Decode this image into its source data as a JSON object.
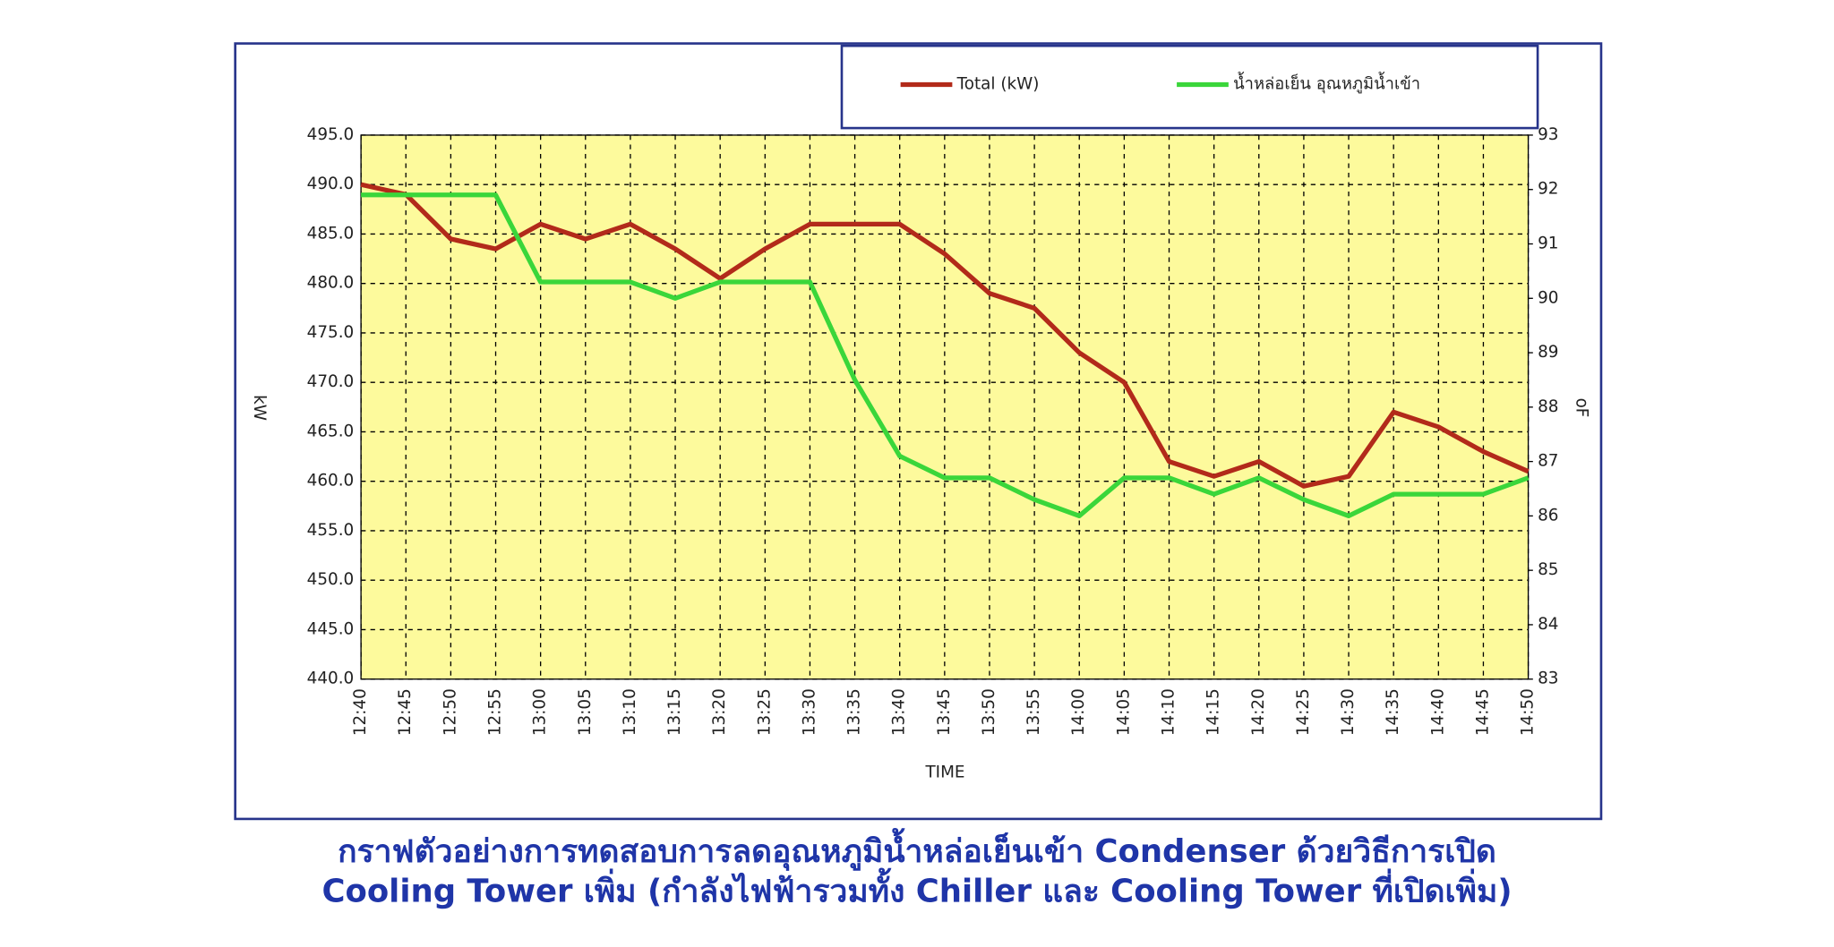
{
  "chart_data": {
    "type": "line",
    "caption": [
      "กราฟตัวอย่างการทดสอบการลดอุณหภูมิน้ำหล่อเย็นเข้า Condenser ด้วยวิธีการเปิด",
      "Cooling Tower เพิ่ม (กำลังไฟฟ้ารวมทั้ง Chiller และ Cooling Tower ที่เปิดเพิ่ม)"
    ],
    "x_label": "TIME",
    "y_label": "kW",
    "y2_label": "oF",
    "categories": [
      "12:40",
      "12:45",
      "12:50",
      "12:55",
      "13:00",
      "13:05",
      "13:10",
      "13:15",
      "13:20",
      "13:25",
      "13:30",
      "13:35",
      "13:40",
      "13:45",
      "13:50",
      "13:55",
      "14:00",
      "14:05",
      "14:10",
      "14:15",
      "14:20",
      "14:25",
      "14:30",
      "14:35",
      "14:40",
      "14:45",
      "14:50"
    ],
    "series": [
      {
        "name": "Total (kW)",
        "color": "#b22a1a",
        "values": [
          490,
          489,
          484.5,
          483.5,
          486,
          484.5,
          486,
          483.5,
          480.5,
          483.5,
          486,
          486,
          486,
          483,
          479,
          477.5,
          473,
          470,
          462,
          460.5,
          462,
          459.5,
          460.5,
          467,
          465.5,
          463,
          461
        ]
      },
      {
        "name": "น้ำหล่อเย็น อุณหภูมิน้ำเข้า",
        "color": "#3ad63a",
        "axis": "y2",
        "values": [
          91.9,
          91.9,
          91.9,
          91.9,
          90.3,
          90.3,
          90.3,
          90.0,
          90.3,
          90.3,
          90.3,
          88.5,
          87.1,
          86.7,
          86.7,
          86.3,
          86.0,
          86.7,
          86.7,
          86.4,
          86.7,
          86.3,
          86.0,
          86.4,
          86.4,
          86.4,
          86.7
        ]
      }
    ],
    "ylim": [
      440,
      495
    ],
    "yticks": [
      {
        "value": 440,
        "label": "440.0"
      },
      {
        "value": 445,
        "label": "445.0"
      },
      {
        "value": 450,
        "label": "450.0"
      },
      {
        "value": 455,
        "label": "455.0"
      },
      {
        "value": 460,
        "label": "460.0"
      },
      {
        "value": 465,
        "label": "465.0"
      },
      {
        "value": 470,
        "label": "470.0"
      },
      {
        "value": 475,
        "label": "475.0"
      },
      {
        "value": 480,
        "label": "480.0"
      },
      {
        "value": 485,
        "label": "485.0"
      },
      {
        "value": 490,
        "label": "490.0"
      },
      {
        "value": 495,
        "label": "495.0"
      }
    ],
    "y2lim": [
      83,
      93
    ],
    "y2ticks": [
      83,
      84,
      85,
      86,
      87,
      88,
      89,
      90,
      91,
      92,
      93
    ],
    "grid": true,
    "plot_background": "#fdfa9c",
    "legend": "top-right"
  }
}
